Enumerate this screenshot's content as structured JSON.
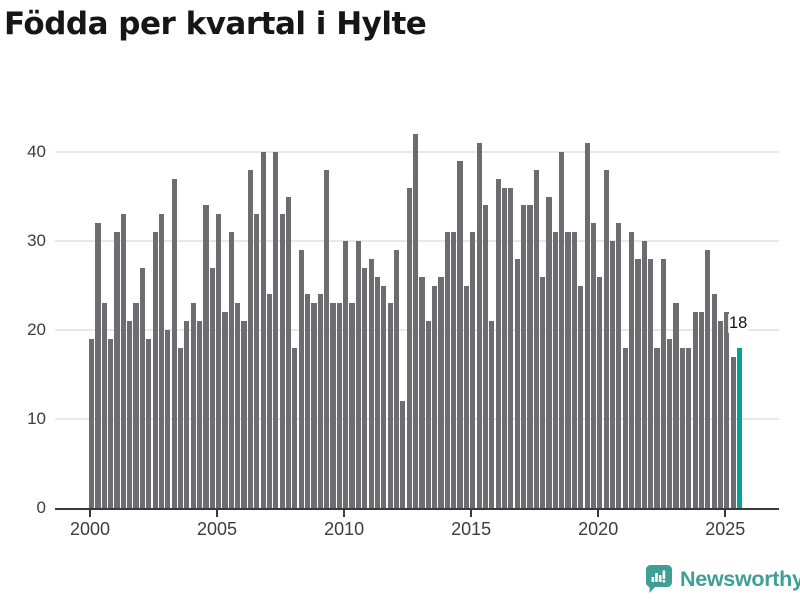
{
  "title": "Födda per kvartal i Hylte",
  "annotation": {
    "last_value_label": "18"
  },
  "footer": {
    "brand": "Newsworthy",
    "logo_icon": "bar-chart-speech-bubble-icon"
  },
  "colors": {
    "bar": "#6d6d71",
    "highlight": "#00a29a",
    "brand": "#3f9e96",
    "grid": "#e8e8e8",
    "axis": "#3a3a3a",
    "tick_label": "#3d3d3d",
    "title": "#161616"
  },
  "chart_data": {
    "type": "bar",
    "title": "Födda per kvartal i Hylte",
    "x_unit": "quarter",
    "start_period": "2000-Q1",
    "end_period": "2025-Q3",
    "x_tick_labels": [
      "2000",
      "2005",
      "2010",
      "2015",
      "2020",
      "2025"
    ],
    "y_ticks": [
      0,
      10,
      20,
      30,
      40
    ],
    "ylim": [
      0,
      44
    ],
    "grid": "horizontal",
    "legend": "none",
    "highlight_last_bar": true,
    "last_bar_data_label": "18",
    "values": [
      19,
      32,
      23,
      19,
      31,
      33,
      21,
      23,
      27,
      19,
      31,
      33,
      20,
      37,
      18,
      21,
      23,
      21,
      34,
      27,
      33,
      22,
      31,
      23,
      21,
      38,
      33,
      40,
      24,
      40,
      33,
      35,
      18,
      29,
      24,
      23,
      24,
      38,
      23,
      23,
      30,
      23,
      30,
      27,
      28,
      26,
      25,
      23,
      29,
      12,
      36,
      42,
      26,
      21,
      25,
      26,
      31,
      31,
      39,
      25,
      31,
      41,
      34,
      21,
      37,
      36,
      36,
      28,
      34,
      34,
      38,
      26,
      35,
      31,
      40,
      31,
      31,
      25,
      41,
      32,
      26,
      38,
      30,
      32,
      18,
      31,
      28,
      30,
      28,
      18,
      28,
      19,
      23,
      18,
      18,
      22,
      22,
      29,
      24,
      21,
      22,
      17,
      18
    ]
  }
}
